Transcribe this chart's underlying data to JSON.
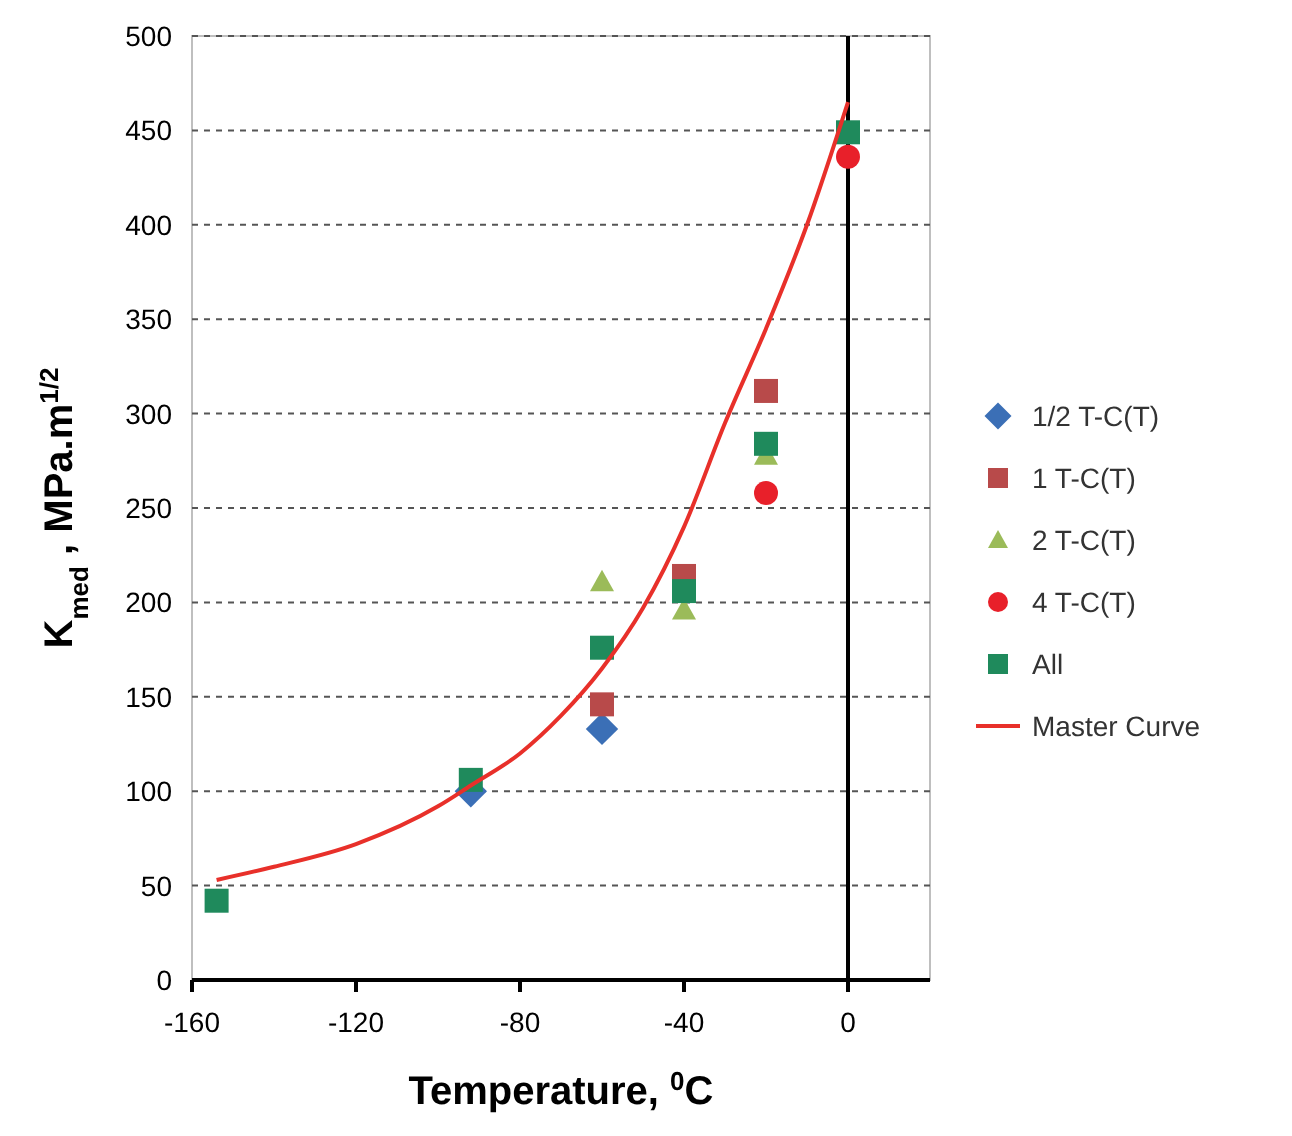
{
  "chart_data": {
    "type": "scatter",
    "xlabel": "Temperature, $^{0}$C",
    "ylabel": "K$_{med}$ , MPa.m$^{1/2}$",
    "xlim": [
      -160,
      20
    ],
    "xticks": [
      -160,
      -120,
      -80,
      -40,
      0
    ],
    "ylim": [
      0,
      500
    ],
    "yticks": [
      0,
      50,
      100,
      150,
      200,
      250,
      300,
      350,
      400,
      450,
      500
    ],
    "grid": "y",
    "legend": "right",
    "ref_lines": [
      {
        "axis": "x",
        "value": 0,
        "color": "#000000"
      }
    ],
    "series": [
      {
        "name": "1/2 T-C(T)",
        "color": "#3b6fb6",
        "marker": "diamond",
        "x": [
          -92,
          -60
        ],
        "values": [
          100,
          133
        ]
      },
      {
        "name": "1 T-C(T)",
        "color": "#b84a4a",
        "marker": "square",
        "x": [
          -60,
          -40,
          -20
        ],
        "values": [
          146,
          214,
          312
        ]
      },
      {
        "name": "2 T-C(T)",
        "color": "#9bbb59",
        "marker": "triangle",
        "x": [
          -60,
          -40,
          -20
        ],
        "values": [
          211,
          196,
          278
        ]
      },
      {
        "name": "4 T-C(T)",
        "color": "#e8202a",
        "marker": "circle",
        "x": [
          -20,
          0
        ],
        "values": [
          258,
          436
        ]
      },
      {
        "name": "All",
        "color": "#1f8a5c",
        "marker": "square",
        "x": [
          -154,
          -92,
          -60,
          -40,
          -20,
          0
        ],
        "values": [
          42,
          106,
          176,
          206,
          284,
          449
        ]
      },
      {
        "name": "Master Curve",
        "type": "line",
        "color": "#e8302a",
        "marker": "none",
        "x": [
          -154,
          -140,
          -120,
          -100,
          -92,
          -80,
          -70,
          -60,
          -50,
          -40,
          -30,
          -20,
          -10,
          0
        ],
        "values": [
          53,
          60,
          72,
          92,
          103,
          120,
          140,
          165,
          197,
          240,
          295,
          345,
          400,
          465
        ]
      }
    ]
  }
}
